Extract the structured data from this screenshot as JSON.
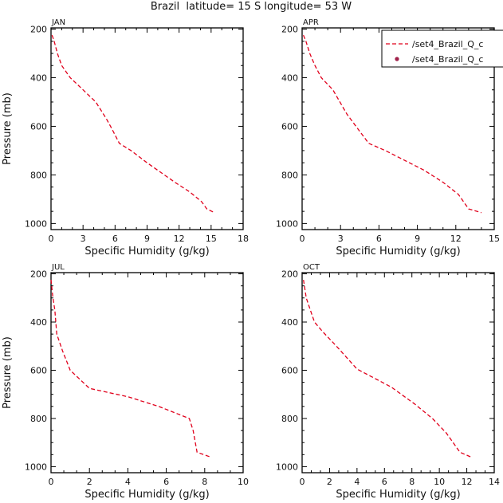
{
  "title": "Brazil  latitude= 15 S longitude= 53 W",
  "colors": {
    "series": "#e0001b",
    "obs": "#a0204a",
    "axis": "#000000"
  },
  "legend": {
    "entries": [
      {
        "label": "/set4_Brazil_Q_c",
        "marker": "dashed-line"
      },
      {
        "label": "/set4_Brazil_Q_c",
        "marker": "dot"
      }
    ]
  },
  "chart_data": [
    {
      "type": "line",
      "title": "JAN",
      "xlabel": "Specific Humidity (g/kg)",
      "ylabel": "Pressure (mb)",
      "xlim": [
        0,
        18
      ],
      "ylim": [
        1025,
        195
      ],
      "xticks": [
        "0",
        "3",
        "6",
        "9",
        "12",
        "15",
        "18"
      ],
      "yticks": [
        "200",
        "400",
        "600",
        "800",
        "1000"
      ],
      "series": [
        {
          "name": "/set4_Brazil_Q_c",
          "x": [
            0.1,
            0.3,
            0.6,
            1.0,
            1.8,
            3.0,
            4.2,
            5.2,
            5.7,
            6.4,
            7.5,
            9.0,
            10.3,
            11.6,
            13.0,
            14.1,
            14.6,
            15.3
          ],
          "y": [
            225,
            250,
            300,
            350,
            400,
            450,
            500,
            570,
            610,
            670,
            700,
            750,
            790,
            830,
            870,
            910,
            940,
            955
          ]
        }
      ]
    },
    {
      "type": "line",
      "title": "APR",
      "xlabel": "Specific Humidity (g/kg)",
      "ylabel": "",
      "xlim": [
        0,
        15
      ],
      "ylim": [
        1025,
        195
      ],
      "xticks": [
        "0",
        "3",
        "6",
        "9",
        "12",
        "15"
      ],
      "yticks": [
        "200",
        "400",
        "600",
        "800",
        "1000"
      ],
      "series": [
        {
          "name": "/set4_Brazil_Q_c",
          "x": [
            0.1,
            0.3,
            0.6,
            1.0,
            1.5,
            2.4,
            3.5,
            5.2,
            6.5,
            8.0,
            9.5,
            11.0,
            12.2,
            13.0,
            14.0
          ],
          "y": [
            225,
            250,
            300,
            350,
            400,
            450,
            550,
            670,
            700,
            740,
            780,
            830,
            880,
            940,
            955
          ]
        }
      ]
    },
    {
      "type": "line",
      "title": "JUL",
      "xlabel": "Specific Humidity (g/kg)",
      "ylabel": "Pressure (mb)",
      "xlim": [
        0,
        10
      ],
      "ylim": [
        1025,
        195
      ],
      "xticks": [
        "0",
        "2",
        "4",
        "6",
        "8",
        "10"
      ],
      "yticks": [
        "200",
        "400",
        "600",
        "800",
        "1000"
      ],
      "series": [
        {
          "name": "/set4_Brazil_Q_c",
          "x": [
            0.0,
            0.1,
            0.2,
            0.3,
            0.6,
            1.0,
            2.0,
            4.0,
            5.6,
            7.2,
            7.4,
            7.6,
            8.3
          ],
          "y": [
            225,
            300,
            350,
            450,
            520,
            600,
            675,
            710,
            750,
            800,
            850,
            940,
            960
          ]
        }
      ]
    },
    {
      "type": "line",
      "title": "OCT",
      "xlabel": "Specific Humidity (g/kg)",
      "ylabel": "",
      "xlim": [
        0,
        14
      ],
      "ylim": [
        1025,
        195
      ],
      "xticks": [
        "0",
        "2",
        "4",
        "6",
        "8",
        "10",
        "12",
        "14"
      ],
      "yticks": [
        "200",
        "400",
        "600",
        "800",
        "1000"
      ],
      "series": [
        {
          "name": "/set4_Brazil_Q_c",
          "x": [
            0.1,
            0.3,
            0.6,
            0.9,
            1.5,
            2.5,
            4.0,
            6.5,
            8.2,
            9.5,
            10.5,
            11.5,
            12.3
          ],
          "y": [
            225,
            300,
            350,
            400,
            440,
            500,
            595,
            670,
            740,
            800,
            860,
            940,
            960
          ]
        }
      ]
    }
  ]
}
